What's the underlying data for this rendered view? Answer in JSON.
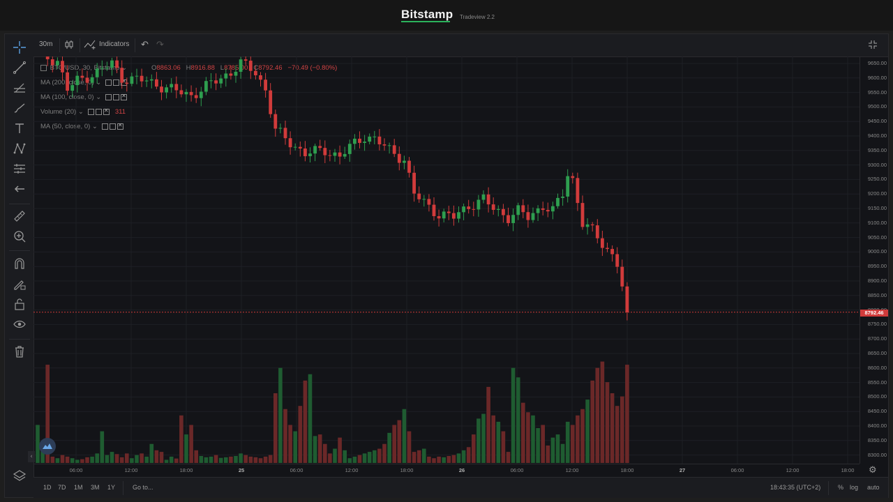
{
  "brand": {
    "name": "Bitstamp",
    "version": "Tradeview 2.2"
  },
  "toolbar": {
    "interval": "30m",
    "indicators": "Indicators"
  },
  "legend": {
    "symbol": "BTC/USD, 30, Bitstamp",
    "ohlc": {
      "o_label": "O",
      "o": "8863.06",
      "h_label": "H",
      "h": "8916.88",
      "l_label": "L",
      "l": "8785.00",
      "c_label": "C",
      "c": "8792.46",
      "change": "−70.49 (−0.80%)"
    },
    "studies": [
      {
        "label": "MA (200, close, 0)",
        "value": ""
      },
      {
        "label": "MA (100, close, 0)",
        "value": ""
      },
      {
        "label": "Volume (20)",
        "value": "311"
      },
      {
        "label": "MA (50, close, 0)",
        "value": ""
      }
    ]
  },
  "last_price": "8792.46",
  "bottom": {
    "ranges": [
      "1D",
      "7D",
      "1M",
      "3M",
      "1Y"
    ],
    "goto": "Go to...",
    "clock": "18:43:35 (UTC+2)",
    "pct": "%",
    "log": "log",
    "auto": "auto"
  },
  "chart_data": {
    "type": "candlestick",
    "y_axis_ticks": [
      "9650.00",
      "9600.00",
      "9550.00",
      "9500.00",
      "9450.00",
      "9400.00",
      "9350.00",
      "9300.00",
      "9250.00",
      "9200.00",
      "9150.00",
      "9100.00",
      "9050.00",
      "9000.00",
      "8950.00",
      "8900.00",
      "8850.00",
      "8800.00",
      "8750.00",
      "8700.00",
      "8650.00",
      "8600.00",
      "8550.00",
      "8500.00",
      "8450.00",
      "8400.00",
      "8350.00",
      "8300.00"
    ],
    "x_axis_ticks": [
      "06:00",
      "12:00",
      "18:00",
      "25",
      "06:00",
      "12:00",
      "18:00",
      "26",
      "06:00",
      "12:00",
      "18:00",
      "27",
      "06:00",
      "12:00",
      "18:00"
    ],
    "colors": {
      "up": "#2e9e4f",
      "down": "#d13b3b",
      "up_vol": "#1f5c31",
      "down_vol": "#6b2828"
    },
    "anchors": [
      {
        "t": 0,
        "p": 9680
      },
      {
        "t": 4,
        "p": 9660
      },
      {
        "t": 6,
        "p": 9560
      },
      {
        "t": 8,
        "p": 9590
      },
      {
        "t": 12,
        "p": 9620
      },
      {
        "t": 15,
        "p": 9650
      },
      {
        "t": 17,
        "p": 9600
      },
      {
        "t": 22,
        "p": 9590
      },
      {
        "t": 27,
        "p": 9560
      },
      {
        "t": 31,
        "p": 9540
      },
      {
        "t": 35,
        "p": 9580
      },
      {
        "t": 39,
        "p": 9620
      },
      {
        "t": 41,
        "p": 9650
      },
      {
        "t": 44,
        "p": 9620
      },
      {
        "t": 46,
        "p": 9560
      },
      {
        "t": 48,
        "p": 9420
      },
      {
        "t": 50,
        "p": 9390
      },
      {
        "t": 54,
        "p": 9340
      },
      {
        "t": 58,
        "p": 9350
      },
      {
        "t": 61,
        "p": 9330
      },
      {
        "t": 63,
        "p": 9360
      },
      {
        "t": 66,
        "p": 9400
      },
      {
        "t": 68,
        "p": 9390
      },
      {
        "t": 71,
        "p": 9350
      },
      {
        "t": 74,
        "p": 9320
      },
      {
        "t": 76,
        "p": 9200
      },
      {
        "t": 78,
        "p": 9170
      },
      {
        "t": 81,
        "p": 9130
      },
      {
        "t": 84,
        "p": 9120
      },
      {
        "t": 87,
        "p": 9160
      },
      {
        "t": 90,
        "p": 9180
      },
      {
        "t": 92,
        "p": 9150
      },
      {
        "t": 95,
        "p": 9120
      },
      {
        "t": 97,
        "p": 9140
      },
      {
        "t": 99,
        "p": 9120
      },
      {
        "t": 102,
        "p": 9160
      },
      {
        "t": 104,
        "p": 9140
      },
      {
        "t": 106,
        "p": 9200
      },
      {
        "t": 107,
        "p": 9270
      },
      {
        "t": 108,
        "p": 9250
      },
      {
        "t": 110,
        "p": 9100
      },
      {
        "t": 112,
        "p": 9070
      },
      {
        "t": 114,
        "p": 9030
      },
      {
        "t": 116,
        "p": 8990
      },
      {
        "t": 117,
        "p": 8960
      },
      {
        "t": 118,
        "p": 8880
      },
      {
        "t": 119,
        "p": 8792
      }
    ],
    "volume": [
      120,
      70,
      310,
      20,
      15,
      25,
      20,
      15,
      10,
      12,
      18,
      20,
      30,
      100,
      25,
      35,
      28,
      18,
      30,
      15,
      25,
      30,
      20,
      60,
      40,
      35,
      10,
      20,
      14,
      150,
      90,
      120,
      40,
      22,
      18,
      20,
      25,
      16,
      18,
      20,
      22,
      30,
      25,
      20,
      18,
      15,
      20,
      25,
      220,
      300,
      170,
      120,
      100,
      180,
      260,
      280,
      85,
      90,
      60,
      30,
      45,
      80,
      40,
      15,
      20,
      25,
      30,
      35,
      40,
      45,
      60,
      95,
      120,
      135,
      170,
      100,
      35,
      40,
      45,
      20,
      15,
      20,
      18,
      22,
      25,
      30,
      40,
      50,
      90,
      140,
      155,
      240,
      150,
      130,
      100,
      35,
      300,
      270,
      190,
      160,
      150,
      110,
      120,
      55,
      80,
      90,
      60,
      130,
      120,
      150,
      170,
      200,
      260,
      300,
      320,
      255,
      220,
      180,
      210,
      310,
      200
    ]
  }
}
